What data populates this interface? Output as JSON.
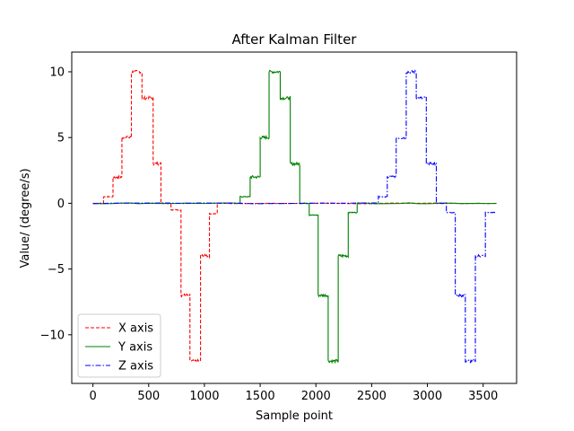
{
  "chart_data": {
    "type": "line",
    "title": "After Kalman Filter",
    "xlabel": "Sample point",
    "ylabel": "Value/ (degree/s)",
    "xlim": [
      -190,
      3800
    ],
    "ylim": [
      -13.7,
      11.5
    ],
    "xticks": [
      0,
      500,
      1000,
      1500,
      2000,
      2500,
      3000,
      3500
    ],
    "xtick_labels": [
      "0",
      "500",
      "1000",
      "1500",
      "2000",
      "2500",
      "3000",
      "3500"
    ],
    "yticks": [
      10,
      5,
      0,
      -5,
      -10
    ],
    "ytick_labels": [
      "10",
      "5",
      "0",
      "−5",
      "−10"
    ],
    "grid": false,
    "legend_position": "lower-left",
    "series": [
      {
        "name": "X axis",
        "color": "#ff0000",
        "dash": "dashed",
        "segments": [
          [
            0,
            95,
            0
          ],
          [
            95,
            180,
            0.5
          ],
          [
            180,
            260,
            2
          ],
          [
            260,
            345,
            5
          ],
          [
            345,
            440,
            10
          ],
          [
            440,
            540,
            8
          ],
          [
            540,
            610,
            3
          ],
          [
            610,
            700,
            0
          ],
          [
            700,
            790,
            -0.5
          ],
          [
            790,
            870,
            -7
          ],
          [
            870,
            965,
            -12
          ],
          [
            965,
            1045,
            -4
          ],
          [
            1045,
            1115,
            -0.8
          ],
          [
            1115,
            3620,
            0
          ]
        ]
      },
      {
        "name": "Y axis",
        "color": "#008000",
        "dash": "solid",
        "segments": [
          [
            0,
            1320,
            0
          ],
          [
            1320,
            1410,
            0.5
          ],
          [
            1410,
            1500,
            2
          ],
          [
            1500,
            1580,
            5
          ],
          [
            1580,
            1680,
            10
          ],
          [
            1680,
            1770,
            8
          ],
          [
            1770,
            1855,
            3
          ],
          [
            1855,
            1940,
            0
          ],
          [
            1940,
            2020,
            -0.9
          ],
          [
            2020,
            2110,
            -7
          ],
          [
            2110,
            2200,
            -12
          ],
          [
            2200,
            2290,
            -4
          ],
          [
            2290,
            2370,
            -0.7
          ],
          [
            2370,
            3620,
            0
          ]
        ]
      },
      {
        "name": "Z axis",
        "color": "#0000ff",
        "dash": "dashdot",
        "segments": [
          [
            0,
            2560,
            0
          ],
          [
            2560,
            2640,
            0.5
          ],
          [
            2640,
            2720,
            2
          ],
          [
            2720,
            2810,
            5
          ],
          [
            2810,
            2900,
            10
          ],
          [
            2900,
            2990,
            8
          ],
          [
            2990,
            3080,
            3
          ],
          [
            3080,
            3170,
            0
          ],
          [
            3170,
            3250,
            -0.7
          ],
          [
            3250,
            3340,
            -7
          ],
          [
            3340,
            3430,
            -12
          ],
          [
            3430,
            3520,
            -4
          ],
          [
            3520,
            3620,
            -0.7
          ]
        ]
      }
    ]
  }
}
